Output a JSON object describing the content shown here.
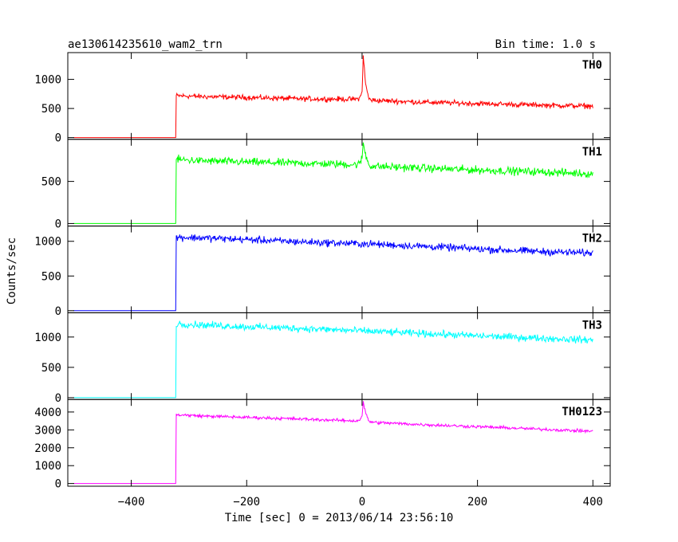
{
  "header": {
    "title": "ae130614235610_wam2_trn",
    "bin_time": "Bin time: 1.0 s"
  },
  "chart_data": {
    "type": "line",
    "title": "ae130614235610_wam2_trn",
    "subtitle": "Bin time: 1.0 s",
    "xlabel": "Time [sec] 0 = 2013/06/14 23:56:10",
    "ylabel": "Counts/sec",
    "xlim": [
      -510,
      430
    ],
    "x_ticks": [
      -400,
      -200,
      0,
      200,
      400
    ],
    "x_tick_labels": [
      "−400",
      "−200",
      "0",
      "200",
      "400"
    ],
    "panels": [
      {
        "name": "TH0",
        "color": "#ff0000",
        "ylim": [
          -30,
          1460
        ],
        "y_ticks": [
          0,
          500,
          1000
        ],
        "y_tick_labels": [
          "0",
          "500",
          "1000"
        ],
        "x": [
          -500,
          -323,
          -322,
          -280,
          -200,
          -100,
          -10,
          -4,
          0,
          2,
          6,
          12,
          20,
          100,
          200,
          300,
          400
        ],
        "values": [
          0,
          0,
          720,
          705,
          690,
          665,
          660,
          680,
          780,
          1420,
          920,
          660,
          640,
          610,
          585,
          560,
          540
        ],
        "noise": 38
      },
      {
        "name": "TH1",
        "color": "#00ff00",
        "ylim": [
          -30,
          1000
        ],
        "y_ticks": [
          0,
          500
        ],
        "y_tick_labels": [
          "0",
          "500"
        ],
        "x": [
          -500,
          -323,
          -322,
          -280,
          -200,
          -100,
          -10,
          -4,
          0,
          2,
          6,
          12,
          20,
          100,
          200,
          300,
          400
        ],
        "values": [
          0,
          0,
          760,
          745,
          730,
          715,
          700,
          710,
          780,
          960,
          820,
          695,
          680,
          660,
          635,
          615,
          590
        ],
        "noise": 40
      },
      {
        "name": "TH2",
        "color": "#0000ff",
        "ylim": [
          -30,
          1220
        ],
        "y_ticks": [
          0,
          500,
          1000
        ],
        "y_tick_labels": [
          "0",
          "500",
          "1000"
        ],
        "x": [
          -500,
          -323,
          -322,
          -280,
          -200,
          -100,
          0,
          100,
          200,
          300,
          400
        ],
        "values": [
          0,
          0,
          1060,
          1050,
          1025,
          990,
          965,
          930,
          890,
          855,
          830
        ],
        "noise": 45
      },
      {
        "name": "TH3",
        "color": "#00ffff",
        "ylim": [
          -30,
          1400
        ],
        "y_ticks": [
          0,
          500,
          1000
        ],
        "y_tick_labels": [
          "0",
          "500",
          "1000"
        ],
        "x": [
          -500,
          -323,
          -322,
          -280,
          -200,
          -100,
          0,
          100,
          200,
          300,
          400
        ],
        "values": [
          0,
          0,
          1220,
          1200,
          1170,
          1140,
          1100,
          1060,
          1020,
          985,
          950
        ],
        "noise": 50
      },
      {
        "name": "TH0123",
        "color": "#ff00ff",
        "ylim": [
          -150,
          4700
        ],
        "y_ticks": [
          0,
          1000,
          2000,
          3000,
          4000
        ],
        "y_tick_labels": [
          "0",
          "1000",
          "2000",
          "3000",
          "4000"
        ],
        "x": [
          -500,
          -323,
          -322,
          -280,
          -200,
          -100,
          -10,
          -4,
          0,
          2,
          6,
          12,
          20,
          100,
          200,
          300,
          400
        ],
        "values": [
          0,
          0,
          3850,
          3780,
          3700,
          3600,
          3500,
          3560,
          3800,
          4550,
          3950,
          3480,
          3420,
          3300,
          3180,
          3050,
          2920
        ],
        "noise": 75
      }
    ]
  }
}
